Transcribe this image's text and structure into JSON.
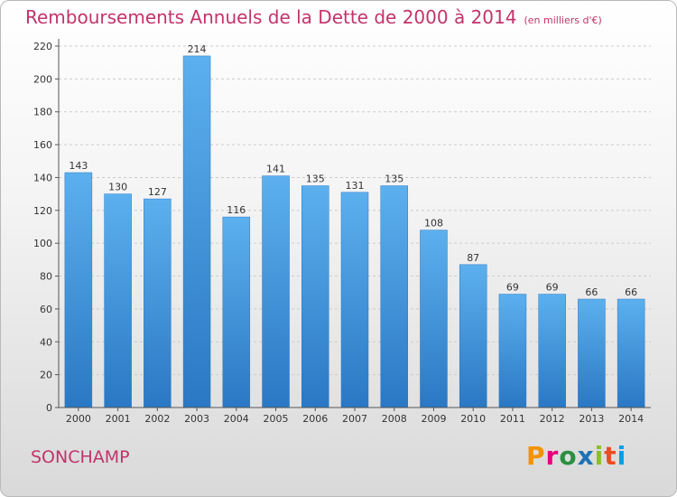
{
  "title": "Remboursements Annuels de la Dette de 2000 à 2014",
  "subtitle": "(en milliers d'€)",
  "place": "SONCHAMP",
  "logo": {
    "text": "Proxiti",
    "colors": [
      "#f39200",
      "#e6007e",
      "#2a8f3f",
      "#1d71b8",
      "#8cbf26",
      "#e94e1b",
      "#009fe3"
    ]
  },
  "chart_data": {
    "type": "bar",
    "categories": [
      "2000",
      "2001",
      "2002",
      "2003",
      "2004",
      "2005",
      "2006",
      "2007",
      "2008",
      "2009",
      "2010",
      "2011",
      "2012",
      "2013",
      "2014"
    ],
    "values": [
      143,
      130,
      127,
      214,
      116,
      141,
      135,
      131,
      135,
      108,
      87,
      69,
      69,
      66,
      66
    ],
    "title": "Remboursements Annuels de la Dette de 2000 à 2014",
    "ylim": [
      0,
      220
    ],
    "yticks": [
      0,
      20,
      40,
      60,
      80,
      100,
      120,
      140,
      160,
      180,
      200,
      220
    ],
    "grid": true,
    "bar_color": "#3f97dc"
  }
}
